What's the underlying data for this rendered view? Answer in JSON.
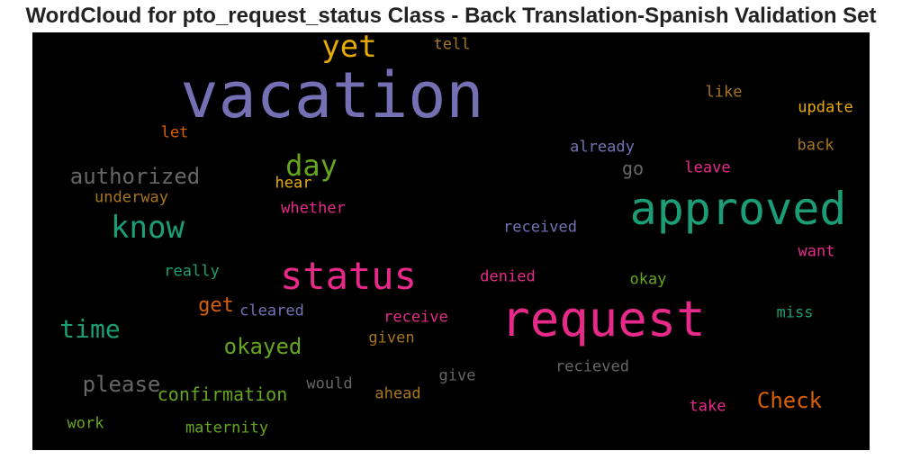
{
  "title": "WordCloud for pto_request_status Class - Back Translation-Spanish Validation Set",
  "chart_data": {
    "type": "wordcloud",
    "title": "WordCloud for pto_request_status Class - Back Translation-Spanish Validation Set",
    "background": "#000000",
    "words": [
      {
        "text": "vacation",
        "weight": 1.0,
        "color": "#7570b3"
      },
      {
        "text": "request",
        "weight": 0.8,
        "color": "#e7298a"
      },
      {
        "text": "approved",
        "weight": 0.75,
        "color": "#1b9e77"
      },
      {
        "text": "status",
        "weight": 0.62,
        "color": "#e7298a"
      },
      {
        "text": "know",
        "weight": 0.52,
        "color": "#1b9e77"
      },
      {
        "text": "yet",
        "weight": 0.5,
        "color": "#e6ab02"
      },
      {
        "text": "day",
        "weight": 0.48,
        "color": "#66a61e"
      },
      {
        "text": "time",
        "weight": 0.42,
        "color": "#1b9e77"
      },
      {
        "text": "authorized",
        "weight": 0.38,
        "color": "#666666"
      },
      {
        "text": "okayed",
        "weight": 0.36,
        "color": "#66a61e"
      },
      {
        "text": "please",
        "weight": 0.36,
        "color": "#666666"
      },
      {
        "text": "Check",
        "weight": 0.36,
        "color": "#d95f02"
      },
      {
        "text": "get",
        "weight": 0.33,
        "color": "#d95f02"
      },
      {
        "text": "go",
        "weight": 0.3,
        "color": "#666666"
      },
      {
        "text": "confirmation",
        "weight": 0.3,
        "color": "#66a61e"
      },
      {
        "text": "received",
        "weight": 0.28,
        "color": "#7570b3"
      },
      {
        "text": "already",
        "weight": 0.28,
        "color": "#7570b3"
      },
      {
        "text": "leave",
        "weight": 0.28,
        "color": "#e7298a"
      },
      {
        "text": "whether",
        "weight": 0.27,
        "color": "#e7298a"
      },
      {
        "text": "receive",
        "weight": 0.27,
        "color": "#e7298a"
      },
      {
        "text": "recieved",
        "weight": 0.27,
        "color": "#666666"
      },
      {
        "text": "would",
        "weight": 0.27,
        "color": "#666666"
      },
      {
        "text": "give",
        "weight": 0.27,
        "color": "#666666"
      },
      {
        "text": "ahead",
        "weight": 0.27,
        "color": "#a6761d"
      },
      {
        "text": "given",
        "weight": 0.27,
        "color": "#a6761d"
      },
      {
        "text": "maternity",
        "weight": 0.27,
        "color": "#66a61e"
      },
      {
        "text": "take",
        "weight": 0.27,
        "color": "#e7298a"
      },
      {
        "text": "denied",
        "weight": 0.27,
        "color": "#e7298a"
      },
      {
        "text": "okay",
        "weight": 0.27,
        "color": "#66a61e"
      },
      {
        "text": "cleared",
        "weight": 0.27,
        "color": "#7570b3"
      },
      {
        "text": "update",
        "weight": 0.27,
        "color": "#e6ab02"
      },
      {
        "text": "back",
        "weight": 0.27,
        "color": "#a6761d"
      },
      {
        "text": "like",
        "weight": 0.27,
        "color": "#a6761d"
      },
      {
        "text": "tell",
        "weight": 0.27,
        "color": "#a6761d"
      },
      {
        "text": "let",
        "weight": 0.27,
        "color": "#d95f02"
      },
      {
        "text": "underway",
        "weight": 0.27,
        "color": "#a6761d"
      },
      {
        "text": "hear",
        "weight": 0.27,
        "color": "#e6ab02"
      },
      {
        "text": "really",
        "weight": 0.27,
        "color": "#1b9e77"
      },
      {
        "text": "want",
        "weight": 0.27,
        "color": "#e7298a"
      },
      {
        "text": "miss",
        "weight": 0.27,
        "color": "#1b9e77"
      },
      {
        "text": "work",
        "weight": 0.27,
        "color": "#66a61e"
      }
    ]
  }
}
